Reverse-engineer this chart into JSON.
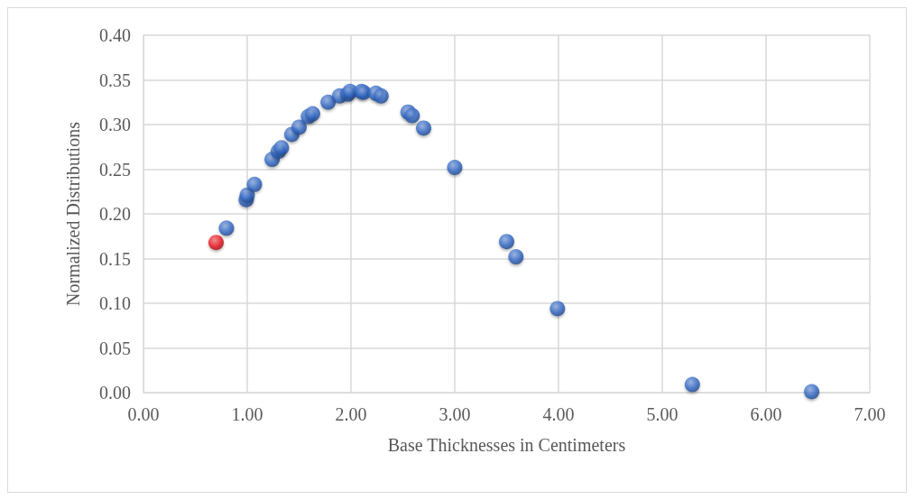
{
  "chart_data": {
    "type": "scatter",
    "xlabel": "Base Thicknesses in Centimeters",
    "ylabel": "Normalized Distributions",
    "xlim": [
      0,
      7
    ],
    "xticks": [
      {
        "value": 0,
        "label": "0.00"
      },
      {
        "value": 1,
        "label": "1.00"
      },
      {
        "value": 2,
        "label": "2.00"
      },
      {
        "value": 3,
        "label": "3.00"
      },
      {
        "value": 4,
        "label": "4.00"
      },
      {
        "value": 5,
        "label": "5.00"
      },
      {
        "value": 6,
        "label": "6.00"
      },
      {
        "value": 7,
        "label": "7.00"
      }
    ],
    "ylim": [
      0,
      0.4
    ],
    "yticks": [
      {
        "value": 0,
        "label": "0.00"
      },
      {
        "value": 0.05,
        "label": "0.05"
      },
      {
        "value": 0.1,
        "label": "0.10"
      },
      {
        "value": 0.15,
        "label": "0.15"
      },
      {
        "value": 0.2,
        "label": "0.20"
      },
      {
        "value": 0.25,
        "label": "0.25"
      },
      {
        "value": 0.3,
        "label": "0.30"
      },
      {
        "value": 0.35,
        "label": "0.35"
      },
      {
        "value": 0.4,
        "label": "0.40"
      }
    ],
    "grid": true,
    "marker": "circle",
    "series": [
      {
        "color": "#2f66c4",
        "x": [
          0.8,
          0.99,
          1.0,
          1.07,
          1.24,
          1.3,
          1.33,
          1.43,
          1.5,
          1.59,
          1.63,
          1.78,
          1.89,
          1.97,
          1.99,
          2.1,
          2.12,
          2.24,
          2.29,
          2.55,
          2.59,
          2.7,
          3.0,
          3.5,
          3.59,
          3.99,
          5.29,
          6.44
        ],
        "values": [
          0.184,
          0.216,
          0.221,
          0.233,
          0.261,
          0.27,
          0.274,
          0.289,
          0.297,
          0.309,
          0.312,
          0.325,
          0.332,
          0.334,
          0.337,
          0.337,
          0.336,
          0.335,
          0.332,
          0.314,
          0.31,
          0.296,
          0.252,
          0.169,
          0.152,
          0.094,
          0.009,
          0.001
        ]
      },
      {
        "color": "#e8141a",
        "x": [
          0.7
        ],
        "values": [
          0.168
        ]
      }
    ]
  }
}
